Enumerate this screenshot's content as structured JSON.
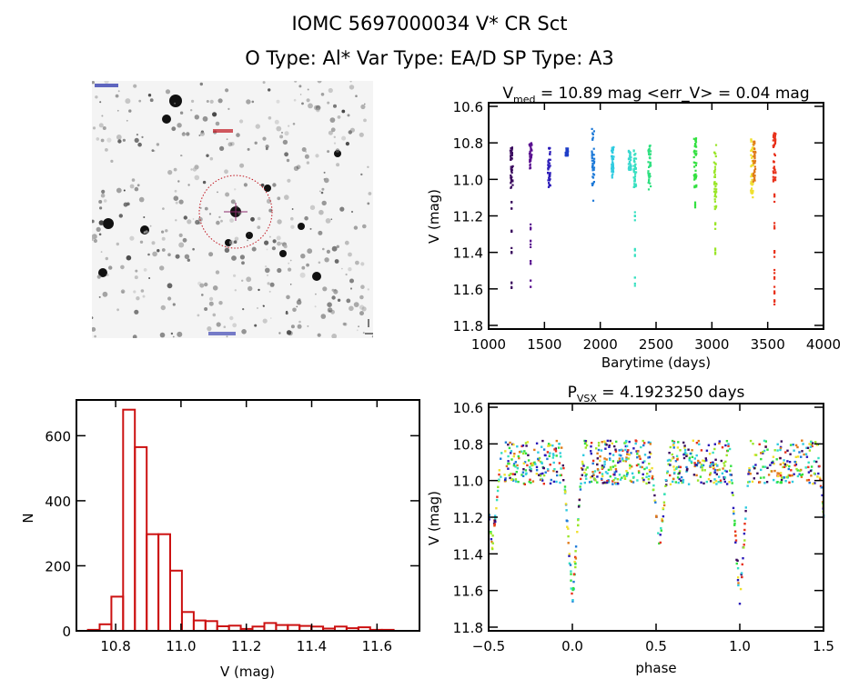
{
  "header": {
    "title_line1": "IOMC 5697000034    V* CR Sct",
    "title_line2": "O Type: Al*  Var Type: EA/D  SP Type: A3"
  },
  "star_image": {
    "description": "finding chart, inverted grayscale star field",
    "marker": "red dotted aperture circle centered on target with crosshair",
    "colors": {
      "background": "#f4f4f4",
      "star": "#111111",
      "aperture": "#c0141e",
      "label": "#1f2aa8"
    }
  },
  "chart_data": [
    {
      "id": "light-curve",
      "type": "scatter",
      "title": "V_med = 10.89 mag <err_V> = 0.04 mag",
      "title_main": "V",
      "title_sub": "med",
      "title_rest": " = 10.89 mag <err_V> = 0.04 mag",
      "xlabel": "Barytime (days)",
      "ylabel": "V (mag)",
      "xlim": [
        1000,
        4000
      ],
      "ylim": [
        11.82,
        10.58
      ],
      "y_inverted": true,
      "xticks": [
        1000,
        1500,
        2000,
        2500,
        3000,
        3500,
        4000
      ],
      "yticks": [
        10.6,
        10.8,
        11.0,
        11.2,
        11.4,
        11.6,
        11.8
      ],
      "ytick_labels": [
        "10.6",
        "10.8",
        "11.0",
        "11.2",
        "11.4",
        "11.6",
        "11.8"
      ],
      "grid": false,
      "colormap": "rainbow by time",
      "series": [
        {
          "name": "season-1",
          "x": 1205,
          "color": "#3a0a5e",
          "core": [
            10.82,
            11.05
          ],
          "tail": [
            11.14,
            11.28,
            11.4,
            11.58
          ]
        },
        {
          "name": "season-2",
          "x": 1375,
          "color": "#5a1190",
          "core": [
            10.8,
            10.94
          ],
          "tail": [
            11.26,
            11.35,
            11.46,
            11.57
          ]
        },
        {
          "name": "season-3",
          "x": 1540,
          "color": "#2a1ab8",
          "core": [
            10.82,
            11.05
          ],
          "tail": []
        },
        {
          "name": "season-4",
          "x": 1700,
          "color": "#1f3ec8",
          "core": [
            10.83,
            10.87
          ],
          "tail": []
        },
        {
          "name": "season-5",
          "x": 1935,
          "color": "#1e7ad8",
          "core": [
            10.72,
            11.12
          ],
          "tail": []
        },
        {
          "name": "season-6",
          "x": 2110,
          "color": "#2fcbe0",
          "core": [
            10.82,
            10.99
          ],
          "tail": []
        },
        {
          "name": "season-7",
          "x": 2265,
          "color": "#3ad8d0",
          "core": [
            10.84,
            10.95
          ],
          "tail": []
        },
        {
          "name": "season-8",
          "x": 2310,
          "color": "#36e0c0",
          "core": [
            10.82,
            11.05
          ],
          "tail": [
            11.2,
            11.4,
            11.56
          ]
        },
        {
          "name": "season-9",
          "x": 2440,
          "color": "#2ee080",
          "core": [
            10.81,
            11.06
          ],
          "tail": []
        },
        {
          "name": "season-10",
          "x": 2850,
          "color": "#32e040",
          "core": [
            10.77,
            11.05
          ],
          "tail": [
            11.15
          ]
        },
        {
          "name": "season-11",
          "x": 3030,
          "color": "#9ae628",
          "core": [
            10.81,
            11.18
          ],
          "tail": [
            11.25,
            11.39
          ]
        },
        {
          "name": "season-12",
          "x": 3360,
          "color": "#f0e030",
          "core": [
            10.76,
            11.1
          ],
          "tail": []
        },
        {
          "name": "season-13",
          "x": 3380,
          "color": "#e07a18",
          "core": [
            10.79,
            11.02
          ],
          "tail": []
        },
        {
          "name": "season-14",
          "x": 3560,
          "color": "#e8321c",
          "core": [
            10.73,
            11.02
          ],
          "tail": [
            11.1,
            11.25,
            11.4,
            11.52,
            11.6,
            11.66
          ]
        }
      ]
    },
    {
      "id": "histogram",
      "type": "bar",
      "title": "",
      "xlabel": "V (mag)",
      "ylabel": "N",
      "xlim": [
        10.68,
        11.73
      ],
      "ylim": [
        0,
        710
      ],
      "xticks": [
        10.8,
        11.0,
        11.2,
        11.4,
        11.6
      ],
      "xtick_labels": [
        "10.8",
        "11.0",
        "11.2",
        "11.4",
        "11.6"
      ],
      "yticks": [
        0,
        200,
        400,
        600
      ],
      "grid": false,
      "bar_color": "#cc1111",
      "bin_width": 0.036,
      "bin_start": 10.715,
      "values": [
        3,
        20,
        105,
        680,
        565,
        297,
        297,
        185,
        58,
        32,
        30,
        14,
        16,
        6,
        13,
        24,
        18,
        18,
        15,
        13,
        7,
        13,
        8,
        11,
        3,
        3
      ]
    },
    {
      "id": "phase-curve",
      "type": "scatter",
      "title": "P_vsx = 4.1923250 days",
      "title_main": "P",
      "title_sub": "VSX",
      "title_rest": " = 4.1923250 days",
      "xlabel": "phase",
      "ylabel": "V (mag)",
      "xlim": [
        -0.5,
        1.5
      ],
      "ylim": [
        11.82,
        10.58
      ],
      "y_inverted": true,
      "xticks": [
        -0.5,
        0.0,
        0.5,
        1.0,
        1.5
      ],
      "xtick_labels": [
        "−0.5",
        "0.0",
        "0.5",
        "1.0",
        "1.5"
      ],
      "yticks": [
        10.6,
        10.8,
        11.0,
        11.2,
        11.4,
        11.6,
        11.8
      ],
      "ytick_labels": [
        "10.6",
        "10.8",
        "11.0",
        "11.2",
        "11.4",
        "11.6",
        "11.8"
      ],
      "grid": false,
      "period_days": 4.192325,
      "primary_eclipse": {
        "phase": 0.0,
        "min_mag": 11.66
      },
      "secondary_eclipse": {
        "phase": 0.52,
        "min_mag": 11.36
      },
      "baseline_mag": [
        10.78,
        11.02
      ],
      "colors": [
        "#3a0a5e",
        "#2a1ab8",
        "#1e7ad8",
        "#2fcbe0",
        "#36e0c0",
        "#32e040",
        "#9ae628",
        "#f0e030",
        "#e07a18",
        "#e8321c"
      ]
    }
  ]
}
